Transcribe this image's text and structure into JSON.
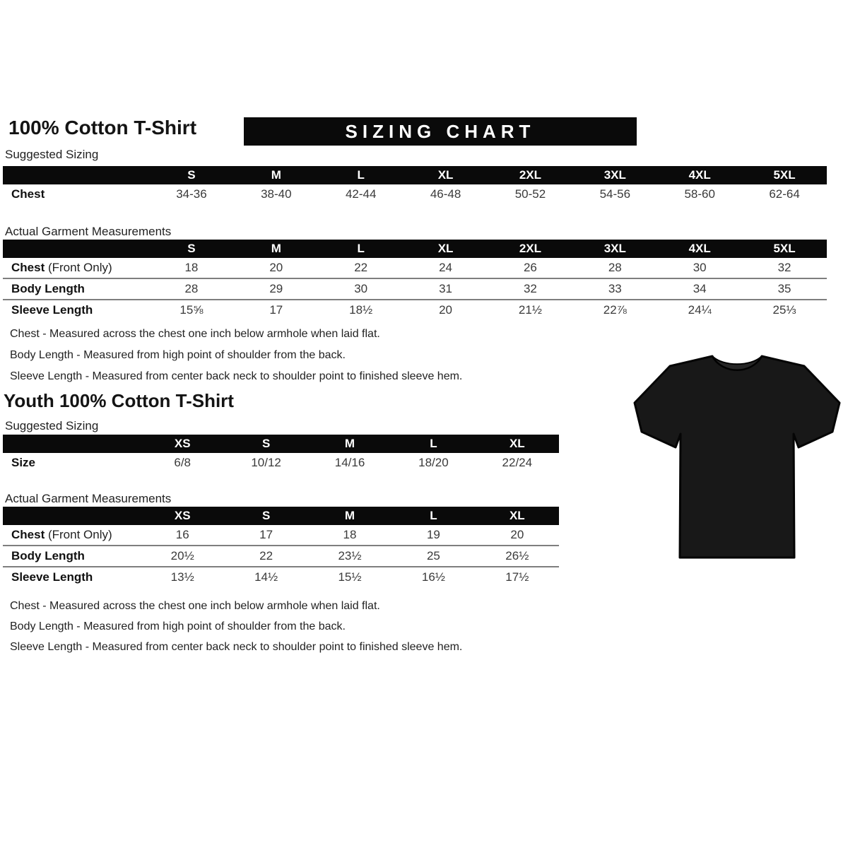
{
  "adult": {
    "title": "100% Cotton T-Shirt",
    "banner_title": "SIZING CHART",
    "suggested_sizing_label": "Suggested Sizing",
    "actual_measurements_label": "Actual Garment Measurements",
    "suggested_table": {
      "columns": [
        "S",
        "M",
        "L",
        "XL",
        "2XL",
        "3XL",
        "4XL",
        "5XL"
      ],
      "rows": [
        {
          "label": "Chest",
          "values": [
            "34-36",
            "38-40",
            "42-44",
            "46-48",
            "50-52",
            "54-56",
            "58-60",
            "62-64"
          ]
        }
      ]
    },
    "actual_table": {
      "columns": [
        "S",
        "M",
        "L",
        "XL",
        "2XL",
        "3XL",
        "4XL",
        "5XL"
      ],
      "rows": [
        {
          "label": "Chest",
          "label_suffix": " (Front Only)",
          "values": [
            "18",
            "20",
            "22",
            "24",
            "26",
            "28",
            "30",
            "32"
          ]
        },
        {
          "label": "Body Length",
          "values": [
            "28",
            "29",
            "30",
            "31",
            "32",
            "33",
            "34",
            "35"
          ]
        },
        {
          "label": "Sleeve Length",
          "values": [
            "15⅝",
            "17",
            "18½",
            "20",
            "21½",
            "22⅞",
            "24¼",
            "25⅓"
          ]
        }
      ]
    },
    "notes": [
      "Chest - Measured across the chest one inch below armhole when laid flat.",
      "Body Length - Measured from high point of shoulder from the back.",
      "Sleeve Length - Measured from center back neck to shoulder point to finished sleeve hem."
    ]
  },
  "youth": {
    "title": "Youth 100% Cotton T-Shirt",
    "suggested_sizing_label": "Suggested Sizing",
    "actual_measurements_label": "Actual Garment Measurements",
    "suggested_table": {
      "columns": [
        "XS",
        "S",
        "M",
        "L",
        "XL"
      ],
      "rows": [
        {
          "label": "Size",
          "values": [
            "6/8",
            "10/12",
            "14/16",
            "18/20",
            "22/24"
          ]
        }
      ]
    },
    "actual_table": {
      "columns": [
        "XS",
        "S",
        "M",
        "L",
        "XL"
      ],
      "rows": [
        {
          "label": "Chest",
          "label_suffix": " (Front Only)",
          "values": [
            "16",
            "17",
            "18",
            "19",
            "20"
          ]
        },
        {
          "label": "Body Length",
          "values": [
            "20½",
            "22",
            "23½",
            "25",
            "26½"
          ]
        },
        {
          "label": "Sleeve Length",
          "values": [
            "13½",
            "14½",
            "15½",
            "16½",
            "17½"
          ]
        }
      ]
    },
    "notes": [
      "Chest - Measured across the chest one inch below armhole when laid flat.",
      "Body Length - Measured from high point of shoulder from the back.",
      "Sleeve Length - Measured from center back neck to shoulder point to finished sleeve hem."
    ]
  },
  "product_image": {
    "name": "black-tshirt-photo",
    "shirt_color": "#181818",
    "collar_color": "#262626"
  },
  "colors": {
    "background": "#ffffff",
    "header_bar": "#0a0a0a",
    "header_text": "#ffffff",
    "row_separator": "#7e7e7e",
    "value_text": "#3a3a3a"
  }
}
